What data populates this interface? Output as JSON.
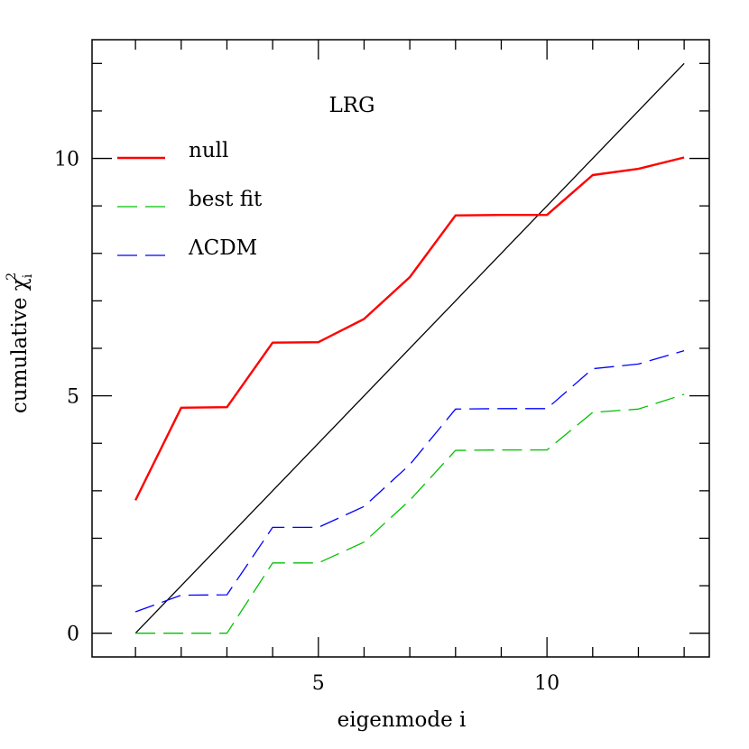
{
  "chart_data": {
    "type": "line",
    "xlabel": "eigenmode i",
    "ylabel_main": "cumulative χ",
    "ylabel_sup": "2",
    "ylabel_sub": "i",
    "xlim": [
      0.05,
      13.55
    ],
    "ylim": [
      -0.5,
      12.5
    ],
    "xticks_major": [
      5,
      10
    ],
    "xticks_minor": [
      1,
      2,
      3,
      4,
      6,
      7,
      8,
      9,
      11,
      12,
      13
    ],
    "yticks_major": [
      0,
      5,
      10
    ],
    "yticks_minor": [
      1,
      2,
      3,
      4,
      6,
      7,
      8,
      9,
      11,
      12
    ],
    "annotation": "LRG",
    "reference_line": {
      "x": [
        1,
        13
      ],
      "y": [
        0,
        12
      ],
      "color": "#000000"
    },
    "x": [
      1,
      2,
      3,
      4,
      5,
      6,
      7,
      8,
      9,
      10,
      11,
      12,
      13
    ],
    "series": [
      {
        "name": "null",
        "style": "solid",
        "color": "#ff0000",
        "values": [
          2.8,
          4.75,
          4.76,
          6.12,
          6.13,
          6.62,
          7.5,
          8.8,
          8.81,
          8.81,
          9.65,
          9.78,
          10.02
        ]
      },
      {
        "name": "best fit",
        "style": "dashed",
        "color": "#00c000",
        "values": [
          0.0,
          0.0,
          0.0,
          1.48,
          1.48,
          1.92,
          2.8,
          3.85,
          3.86,
          3.86,
          4.65,
          4.72,
          5.03
        ]
      },
      {
        "name": "ΛCDM",
        "style": "dashed",
        "color": "#0000ff",
        "values": [
          0.45,
          0.8,
          0.81,
          2.23,
          2.23,
          2.67,
          3.55,
          4.72,
          4.73,
          4.73,
          5.57,
          5.67,
          5.95
        ]
      }
    ]
  }
}
